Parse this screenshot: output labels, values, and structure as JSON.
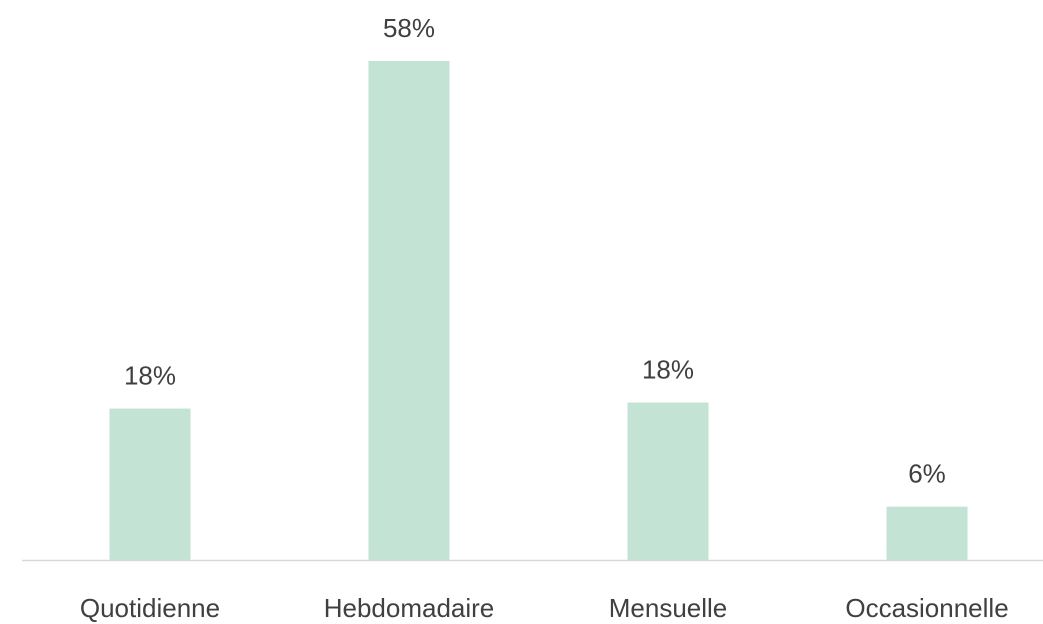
{
  "chart_data": {
    "type": "bar",
    "categories": [
      "Quotidienne",
      "Hebdomadaire",
      "Mensuelle",
      "Occasionnelle"
    ],
    "values": [
      17.6,
      58,
      18.3,
      6.2
    ],
    "value_labels": [
      "18%",
      "58%",
      "18%",
      "6%"
    ],
    "color": "#c3e3d5"
  }
}
